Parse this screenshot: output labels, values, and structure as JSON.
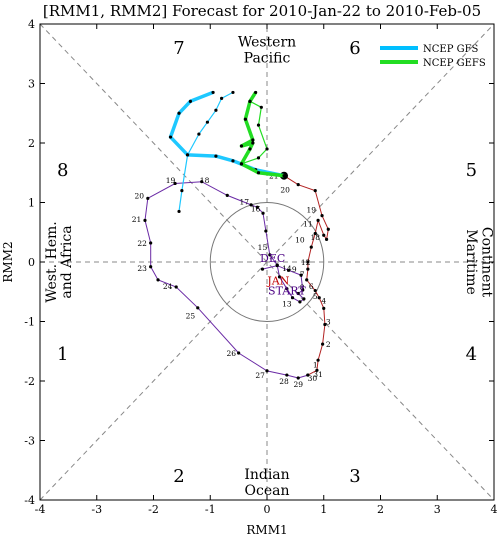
{
  "chart_data": {
    "type": "line",
    "title": "[RMM1, RMM2] Forecast for 2010-Jan-22 to 2010-Feb-05",
    "xlabel": "RMM1",
    "ylabel": "RMM2",
    "xlim": [
      -4,
      4
    ],
    "ylim": [
      -4,
      4
    ],
    "xticks": [
      "-4",
      "-3",
      "-2",
      "-1",
      "0",
      "1",
      "2",
      "3",
      "4"
    ],
    "yticks": [
      "-4",
      "-3",
      "-2",
      "-1",
      "0",
      "1",
      "2",
      "3",
      "4"
    ],
    "phases": [
      {
        "label": "1",
        "x": -3.6,
        "y": -1.55
      },
      {
        "label": "2",
        "x": -1.55,
        "y": -3.6
      },
      {
        "label": "3",
        "x": 1.55,
        "y": -3.6
      },
      {
        "label": "4",
        "x": 3.6,
        "y": -1.55
      },
      {
        "label": "5",
        "x": 3.6,
        "y": 1.55
      },
      {
        "label": "6",
        "x": 1.55,
        "y": 3.6
      },
      {
        "label": "7",
        "x": -1.55,
        "y": 3.6
      },
      {
        "label": "8",
        "x": -3.6,
        "y": 1.55
      }
    ],
    "regions": {
      "top": [
        "Western",
        "Pacific"
      ],
      "bottom": [
        "Indian",
        "Ocean"
      ],
      "left": [
        "West. Hem.",
        "and Africa"
      ],
      "right": [
        "Maritime",
        "Continent"
      ]
    },
    "month_labels": [
      {
        "text": "DEC",
        "x": 0.1,
        "y": 0.0,
        "color": "#4b0082"
      },
      {
        "text": "JAN",
        "x": 0.2,
        "y": -0.38,
        "color": "#c00000"
      },
      {
        "text": "START",
        "x": 0.35,
        "y": -0.55,
        "color": "#4b0082"
      }
    ],
    "series": [
      {
        "color": "#6a2aa5",
        "points": [
          {
            "x": -0.08,
            "y": -0.12
          },
          {
            "x": 0.18,
            "y": -0.06
          },
          {
            "x": 0.38,
            "y": -0.14
          },
          {
            "x": 0.6,
            "y": -0.22
          },
          {
            "x": 0.63,
            "y": -0.47
          },
          {
            "x": 0.55,
            "y": -0.53
          },
          {
            "x": 0.65,
            "y": -0.62
          },
          {
            "x": 0.58,
            "y": -0.67
          },
          {
            "x": 0.45,
            "y": -0.6
          },
          {
            "x": 0.35,
            "y": -0.45
          },
          {
            "x": 0.22,
            "y": -0.25
          },
          {
            "x": 0.18,
            "y": -0.05
          },
          {
            "x": 0.05,
            "y": 0.12
          },
          {
            "x": -0.02,
            "y": 0.52
          },
          {
            "x": -0.07,
            "y": 0.82
          },
          {
            "x": -0.17,
            "y": 0.92
          },
          {
            "x": -0.28,
            "y": 0.96
          },
          {
            "x": -0.7,
            "y": 1.12
          },
          {
            "x": -1.15,
            "y": 1.35
          },
          {
            "x": -1.62,
            "y": 1.32
          },
          {
            "x": -2.1,
            "y": 1.07
          },
          {
            "x": -2.15,
            "y": 0.7
          },
          {
            "x": -2.05,
            "y": 0.32
          },
          {
            "x": -2.05,
            "y": -0.08
          },
          {
            "x": -1.92,
            "y": -0.3
          },
          {
            "x": -1.6,
            "y": -0.42
          },
          {
            "x": -1.22,
            "y": -0.77
          },
          {
            "x": -0.5,
            "y": -1.53
          },
          {
            "x": 0.0,
            "y": -1.83
          },
          {
            "x": 0.35,
            "y": -1.9
          },
          {
            "x": 0.55,
            "y": -1.95
          },
          {
            "x": 0.72,
            "y": -1.9
          }
        ],
        "labels": [
          {
            "text": "13",
            "x": 0.35,
            "y": -0.7
          },
          {
            "text": "14",
            "x": 0.35,
            "y": -0.1
          },
          {
            "text": "15",
            "x": -0.08,
            "y": 0.25
          },
          {
            "text": "16",
            "x": -0.2,
            "y": 0.9
          },
          {
            "text": "17",
            "x": -0.4,
            "y": 1.02
          },
          {
            "text": "18",
            "x": -1.1,
            "y": 1.38
          },
          {
            "text": "19",
            "x": -1.7,
            "y": 1.38
          },
          {
            "text": "20",
            "x": -2.25,
            "y": 1.12
          },
          {
            "text": "21",
            "x": -2.3,
            "y": 0.72
          },
          {
            "text": "22",
            "x": -2.2,
            "y": 0.32
          },
          {
            "text": "23",
            "x": -2.2,
            "y": -0.1
          },
          {
            "text": "24",
            "x": -1.75,
            "y": -0.4
          },
          {
            "text": "25",
            "x": -1.35,
            "y": -0.9
          },
          {
            "text": "26",
            "x": -0.63,
            "y": -1.53
          },
          {
            "text": "27",
            "x": -0.12,
            "y": -1.9
          },
          {
            "text": "28",
            "x": 0.3,
            "y": -2.0
          },
          {
            "text": "29",
            "x": 0.55,
            "y": -2.05
          },
          {
            "text": "30",
            "x": 0.8,
            "y": -1.95
          },
          {
            "text": "31",
            "x": 0.9,
            "y": -1.88
          }
        ]
      },
      {
        "color": "#b22222",
        "points": [
          {
            "x": 0.72,
            "y": -1.9
          },
          {
            "x": 0.88,
            "y": -1.82
          },
          {
            "x": 0.9,
            "y": -1.65
          },
          {
            "x": 0.98,
            "y": -1.38
          },
          {
            "x": 1.02,
            "y": -1.05
          },
          {
            "x": 1.0,
            "y": -0.78
          },
          {
            "x": 0.92,
            "y": -0.6
          },
          {
            "x": 0.85,
            "y": -0.48
          },
          {
            "x": 0.7,
            "y": -0.3
          },
          {
            "x": 0.72,
            "y": -0.12
          },
          {
            "x": 0.72,
            "y": 0.0
          },
          {
            "x": 0.78,
            "y": 0.25
          },
          {
            "x": 0.85,
            "y": 0.48
          },
          {
            "x": 0.9,
            "y": 0.7
          },
          {
            "x": 1.0,
            "y": 0.45
          },
          {
            "x": 1.05,
            "y": 0.38
          },
          {
            "x": 1.08,
            "y": 0.55
          },
          {
            "x": 0.97,
            "y": 0.78
          },
          {
            "x": 0.85,
            "y": 1.2
          },
          {
            "x": 0.55,
            "y": 1.3
          },
          {
            "x": 0.3,
            "y": 1.45
          }
        ],
        "labels": [
          {
            "text": "1",
            "x": 0.85,
            "y": -1.72
          },
          {
            "text": "2",
            "x": 1.08,
            "y": -1.38
          },
          {
            "text": "3",
            "x": 1.08,
            "y": -1.0
          },
          {
            "text": "4",
            "x": 1.0,
            "y": -0.65
          },
          {
            "text": "5",
            "x": 0.85,
            "y": -0.57
          },
          {
            "text": "6",
            "x": 0.78,
            "y": -0.4
          },
          {
            "text": "7",
            "x": 0.62,
            "y": -0.2
          },
          {
            "text": "8",
            "x": 0.62,
            "y": -0.42
          },
          {
            "text": "9",
            "x": 0.48,
            "y": -0.12
          },
          {
            "text": "10",
            "x": 0.58,
            "y": 0.38
          },
          {
            "text": "11",
            "x": 0.72,
            "y": 0.65
          },
          {
            "text": "12",
            "x": 0.68,
            "y": 0.0
          },
          {
            "text": "18",
            "x": 0.85,
            "y": 0.42
          },
          {
            "text": "19",
            "x": 0.78,
            "y": 0.88
          },
          {
            "text": "20",
            "x": 0.32,
            "y": 1.22
          },
          {
            "text": "21",
            "x": 0.12,
            "y": 1.45
          }
        ]
      }
    ],
    "current_point": {
      "x": 0.3,
      "y": 1.45
    },
    "legend": {
      "position": "top-right",
      "entries": [
        {
          "name": "NCEP GFS",
          "color": "#00bfff"
        },
        {
          "name": "NCEP GEFS",
          "color": "#22dd22"
        }
      ]
    },
    "forecasts": [
      {
        "name": "NCEP GFS",
        "color": "#1ec8ff",
        "points": [
          {
            "x": 0.3,
            "y": 1.45
          },
          {
            "x": -0.2,
            "y": 1.55
          },
          {
            "x": -0.6,
            "y": 1.7
          },
          {
            "x": -0.9,
            "y": 1.78
          },
          {
            "x": -1.4,
            "y": 1.8
          },
          {
            "x": -1.7,
            "y": 2.1
          },
          {
            "x": -1.55,
            "y": 2.5
          },
          {
            "x": -1.35,
            "y": 2.7
          },
          {
            "x": -0.95,
            "y": 2.85
          }
        ]
      },
      {
        "name": "NCEP GFS thin",
        "color": "#1ec8ff",
        "points": [
          {
            "x": -1.55,
            "y": 0.85
          },
          {
            "x": -1.5,
            "y": 1.2
          },
          {
            "x": -1.4,
            "y": 1.8
          },
          {
            "x": -1.2,
            "y": 2.15
          },
          {
            "x": -1.05,
            "y": 2.35
          },
          {
            "x": -0.9,
            "y": 2.55
          },
          {
            "x": -0.8,
            "y": 2.75
          },
          {
            "x": -0.6,
            "y": 2.85
          }
        ]
      },
      {
        "name": "NCEP GEFS",
        "color": "#22dd22",
        "points": [
          {
            "x": 0.3,
            "y": 1.45
          },
          {
            "x": -0.15,
            "y": 1.5
          },
          {
            "x": -0.45,
            "y": 1.65
          },
          {
            "x": -0.3,
            "y": 1.9
          },
          {
            "x": -0.25,
            "y": 2.0
          },
          {
            "x": -0.45,
            "y": 1.95
          },
          {
            "x": -0.25,
            "y": 2.05
          },
          {
            "x": -0.38,
            "y": 2.4
          },
          {
            "x": -0.3,
            "y": 2.7
          },
          {
            "x": -0.2,
            "y": 2.85
          }
        ]
      },
      {
        "name": "NCEP GEFS thin",
        "color": "#22dd22",
        "points": [
          {
            "x": -0.45,
            "y": 1.65
          },
          {
            "x": -0.15,
            "y": 1.75
          },
          {
            "x": 0.0,
            "y": 1.9
          },
          {
            "x": -0.15,
            "y": 2.3
          },
          {
            "x": -0.1,
            "y": 2.6
          },
          {
            "x": -0.3,
            "y": 2.7
          }
        ]
      }
    ]
  }
}
